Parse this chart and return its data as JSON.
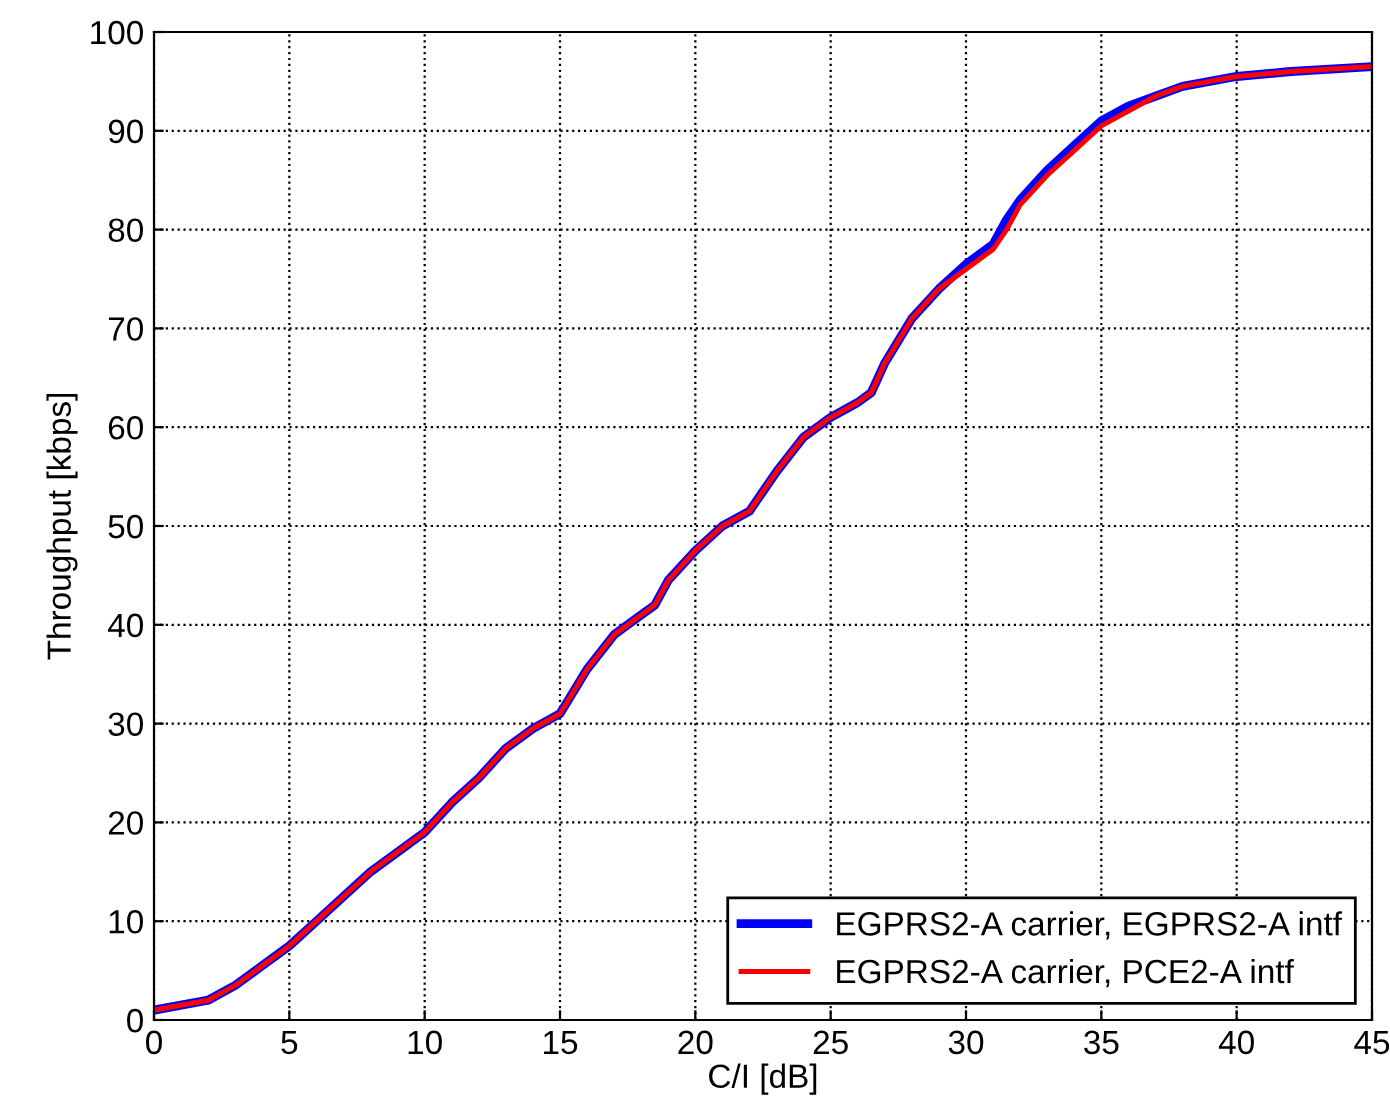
{
  "chart_data": {
    "type": "line",
    "xlabel": "C/I [dB]",
    "ylabel": "Throughput [kbps]",
    "xlim": [
      0,
      45
    ],
    "xticks": [
      0,
      5,
      10,
      15,
      20,
      25,
      30,
      35,
      40,
      45
    ],
    "ylim": [
      0,
      100
    ],
    "yticks": [
      0,
      10,
      20,
      30,
      40,
      50,
      60,
      70,
      80,
      90,
      100
    ],
    "grid": true,
    "legend": "bottom right",
    "line_style": "solid",
    "marker": "none",
    "series": [
      {
        "name": "EGPRS2-A carrier, EGPRS2-A intf",
        "color": "#0000ff",
        "x": [
          0,
          2,
          3,
          4,
          5,
          6,
          7,
          8,
          9,
          10,
          11,
          12,
          13,
          14,
          15,
          16,
          17,
          18,
          18.5,
          19,
          20,
          21,
          22,
          23,
          24,
          25,
          26,
          26.5,
          27,
          28,
          29,
          30,
          31,
          31.5,
          32,
          33,
          34,
          35,
          36,
          37,
          38,
          39,
          40,
          42,
          45
        ],
        "values": [
          1,
          2,
          3.5,
          5.5,
          7.5,
          10,
          12.5,
          15,
          17,
          19,
          22,
          24.5,
          27.5,
          29.5,
          31,
          35.5,
          39,
          41,
          42,
          44.5,
          47.5,
          50,
          51.5,
          55.5,
          59,
          61,
          62.5,
          63.5,
          66.5,
          71,
          74,
          76.5,
          78.5,
          81,
          83,
          86,
          88.5,
          91,
          92.5,
          93.5,
          94.5,
          95,
          95.5,
          96,
          96.5
        ]
      },
      {
        "name": "EGPRS2-A carrier, PCE2-A intf",
        "color": "#ff0000",
        "x": [
          0,
          2,
          3,
          4,
          5,
          6,
          7,
          8,
          9,
          10,
          11,
          12,
          13,
          14,
          15,
          16,
          17,
          18,
          18.5,
          19,
          20,
          21,
          22,
          23,
          24,
          25,
          26,
          26.5,
          27,
          28,
          29,
          30,
          31,
          31.5,
          32,
          33,
          34,
          35,
          36,
          37,
          38,
          39,
          40,
          42,
          45
        ],
        "values": [
          1,
          2,
          3.5,
          5.5,
          7.5,
          10,
          12.5,
          15,
          17,
          19,
          22,
          24.5,
          27.5,
          29.5,
          31,
          35.5,
          39,
          41,
          42,
          44.5,
          47.5,
          50,
          51.5,
          55.5,
          59,
          61,
          62.5,
          63.5,
          66.5,
          71,
          74,
          76,
          78,
          80,
          82.5,
          85.5,
          88,
          90.5,
          92,
          93.5,
          94.5,
          95,
          95.5,
          96,
          96.5
        ]
      }
    ]
  }
}
